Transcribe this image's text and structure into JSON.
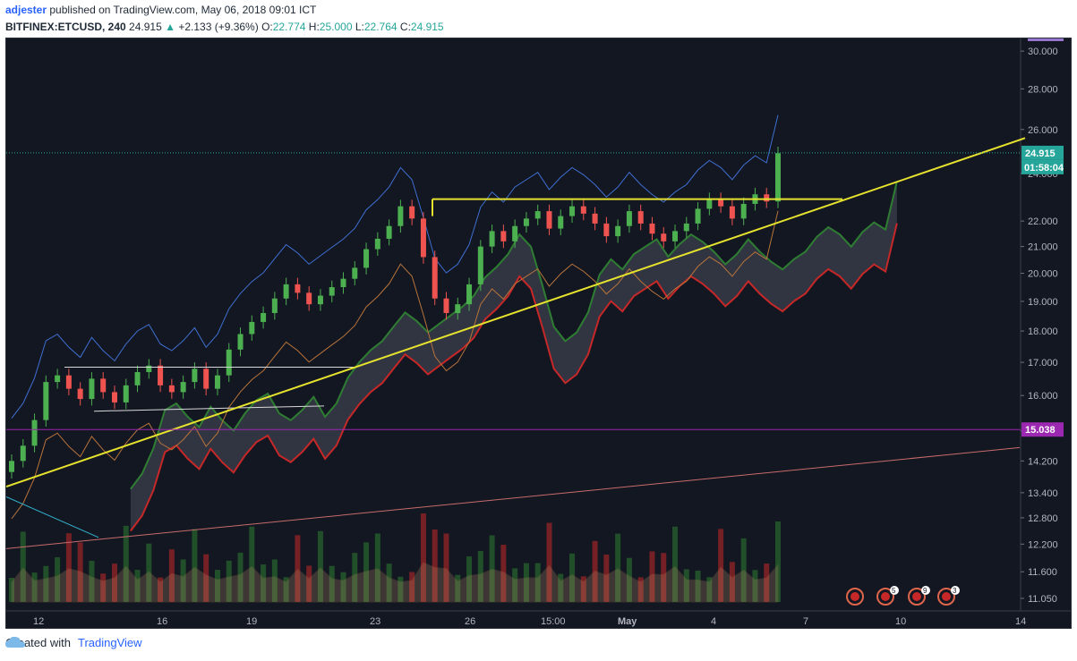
{
  "header": {
    "author": "adjester",
    "published_text": "published on TradingView.com, May 06, 2018 09:01 ICT"
  },
  "ohlc": {
    "symbol": "BITFINEX:ETCUSD, 240",
    "last": "24.915",
    "arrow": "▲",
    "change": "+2.133 (+9.36%)",
    "o_label": "O:",
    "o_val": "22.774",
    "h_label": "H:",
    "h_val": "25.000",
    "l_label": "L:",
    "l_val": "22.764",
    "c_label": "C:",
    "c_val": "24.915"
  },
  "footer": {
    "created_with": "Created with",
    "brand": "TradingView"
  },
  "colors": {
    "background": "#131722",
    "up": "#4caf50",
    "down": "#ef5350",
    "trendline": "#e6e22e",
    "bollinger": "#3f6fd1",
    "cloud": "#4a4f5c",
    "purple_line": "#9c27b0",
    "price_tag": "#26a69a"
  },
  "chart_data": {
    "type": "candlestick",
    "ylim": [
      10.8,
      30.5
    ],
    "scale": "log",
    "y_ticks": [
      "30.000",
      "28.000",
      "26.000",
      "24.000",
      "22.000",
      "21.000",
      "20.000",
      "19.000",
      "18.000",
      "17.000",
      "16.000",
      "15.000",
      "14.200",
      "13.400",
      "12.800",
      "12.200",
      "11.600",
      "11.050"
    ],
    "x_ticks": [
      "12",
      "16",
      "19",
      "23",
      "26",
      "15:00",
      "May",
      "4",
      "7",
      "10",
      "14"
    ],
    "last_price_label": "24.915",
    "countdown_label": "01:58:04",
    "horizontal_level_label": "15.038",
    "horizontal_level": 15.038,
    "close_series": [
      14.2,
      14.6,
      15.3,
      16.4,
      16.6,
      16.2,
      15.9,
      16.5,
      16.1,
      15.8,
      16.3,
      16.7,
      16.9,
      16.3,
      16.1,
      16.4,
      16.8,
      16.2,
      16.6,
      17.4,
      17.9,
      18.3,
      18.6,
      19.1,
      19.6,
      19.3,
      18.9,
      19.2,
      19.5,
      19.8,
      20.2,
      20.9,
      21.3,
      21.8,
      22.6,
      22.1,
      20.6,
      19.1,
      18.6,
      18.9,
      19.6,
      21.0,
      21.6,
      21.2,
      21.8,
      22.1,
      22.4,
      21.7,
      22.2,
      22.6,
      22.3,
      21.9,
      21.4,
      21.8,
      22.4,
      21.9,
      21.5,
      21.2,
      21.6,
      21.9,
      22.5,
      22.9,
      22.6,
      22.1,
      22.7,
      23.1,
      22.8,
      24.9
    ],
    "series": [
      {
        "name": "ETCUSD",
        "values_ref": "close_series"
      }
    ]
  }
}
